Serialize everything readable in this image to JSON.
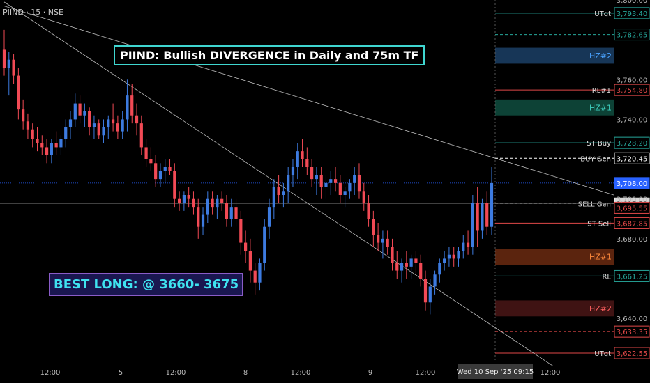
{
  "header": {
    "ticker": "PIIND · 15 · NSE"
  },
  "annotations": {
    "title": "PIIND: Bullish DIVERGENCE in Daily and 75m TF",
    "best_long": "BEST LONG: @ 3660- 3675"
  },
  "colors": {
    "background": "#000000",
    "bull": "#3d7be0",
    "bear": "#f24a55",
    "axis_text": "#b8b8b8",
    "teal_line": "#26a69a",
    "red_line": "#e04848",
    "current_price": "#2962ff"
  },
  "chart_data": {
    "type": "candlestick",
    "title": "PIIND: Bullish DIVERGENCE in Daily and 75m TF",
    "ylim": [
      3618,
      3800
    ],
    "y_ticks": [
      "3,800.00",
      "3,760.00",
      "3,740.00",
      "3,700.00",
      "3,680.00",
      "3,640.00"
    ],
    "x_ticks": [
      "12:00",
      "5",
      "12:00",
      "8",
      "12:00",
      "9",
      "12:00",
      "12:00"
    ],
    "crosshair_date": "Wed 10 Sep '25   09:15",
    "candles": [
      [
        3775,
        3785,
        3762,
        3766
      ],
      [
        3766,
        3774,
        3752,
        3770
      ],
      [
        3770,
        3773,
        3758,
        3762
      ],
      [
        3762,
        3766,
        3740,
        3745
      ],
      [
        3745,
        3750,
        3735,
        3739
      ],
      [
        3739,
        3743,
        3730,
        3735
      ],
      [
        3735,
        3738,
        3726,
        3730
      ],
      [
        3730,
        3736,
        3724,
        3728
      ],
      [
        3728,
        3732,
        3722,
        3726
      ],
      [
        3726,
        3730,
        3718,
        3722
      ],
      [
        3722,
        3730,
        3718,
        3728
      ],
      [
        3728,
        3734,
        3722,
        3726
      ],
      [
        3726,
        3732,
        3722,
        3730
      ],
      [
        3730,
        3740,
        3726,
        3736
      ],
      [
        3736,
        3744,
        3730,
        3740
      ],
      [
        3740,
        3753,
        3736,
        3748
      ],
      [
        3748,
        3752,
        3738,
        3742
      ],
      [
        3742,
        3748,
        3736,
        3744
      ],
      [
        3744,
        3746,
        3732,
        3736
      ],
      [
        3736,
        3742,
        3730,
        3738
      ],
      [
        3738,
        3740,
        3730,
        3732
      ],
      [
        3732,
        3740,
        3728,
        3736
      ],
      [
        3736,
        3742,
        3730,
        3740
      ],
      [
        3740,
        3748,
        3734,
        3738
      ],
      [
        3738,
        3742,
        3730,
        3734
      ],
      [
        3734,
        3744,
        3730,
        3740
      ],
      [
        3740,
        3760,
        3734,
        3752
      ],
      [
        3752,
        3758,
        3738,
        3742
      ],
      [
        3742,
        3748,
        3732,
        3738
      ],
      [
        3738,
        3742,
        3722,
        3726
      ],
      [
        3726,
        3730,
        3716,
        3720
      ],
      [
        3720,
        3726,
        3714,
        3718
      ],
      [
        3718,
        3722,
        3706,
        3710
      ],
      [
        3710,
        3718,
        3706,
        3714
      ],
      [
        3714,
        3720,
        3708,
        3716
      ],
      [
        3716,
        3720,
        3712,
        3714
      ],
      [
        3714,
        3718,
        3696,
        3700
      ],
      [
        3700,
        3704,
        3694,
        3698
      ],
      [
        3698,
        3704,
        3694,
        3702
      ],
      [
        3702,
        3706,
        3696,
        3700
      ],
      [
        3700,
        3704,
        3692,
        3696
      ],
      [
        3696,
        3700,
        3680,
        3686
      ],
      [
        3686,
        3696,
        3682,
        3692
      ],
      [
        3692,
        3704,
        3688,
        3700
      ],
      [
        3700,
        3704,
        3692,
        3696
      ],
      [
        3696,
        3702,
        3690,
        3700
      ],
      [
        3700,
        3704,
        3694,
        3698
      ],
      [
        3698,
        3702,
        3686,
        3690
      ],
      [
        3690,
        3700,
        3686,
        3696
      ],
      [
        3696,
        3700,
        3686,
        3690
      ],
      [
        3690,
        3694,
        3672,
        3678
      ],
      [
        3678,
        3684,
        3668,
        3674
      ],
      [
        3674,
        3680,
        3658,
        3664
      ],
      [
        3664,
        3668,
        3652,
        3658
      ],
      [
        3658,
        3670,
        3654,
        3668
      ],
      [
        3668,
        3690,
        3664,
        3686
      ],
      [
        3686,
        3700,
        3680,
        3696
      ],
      [
        3696,
        3710,
        3690,
        3706
      ],
      [
        3706,
        3712,
        3698,
        3702
      ],
      [
        3702,
        3708,
        3696,
        3704
      ],
      [
        3704,
        3716,
        3698,
        3712
      ],
      [
        3712,
        3720,
        3706,
        3716
      ],
      [
        3716,
        3728,
        3710,
        3724
      ],
      [
        3724,
        3730,
        3716,
        3720
      ],
      [
        3720,
        3726,
        3712,
        3716
      ],
      [
        3716,
        3720,
        3706,
        3710
      ],
      [
        3710,
        3716,
        3702,
        3712
      ],
      [
        3712,
        3716,
        3700,
        3706
      ],
      [
        3706,
        3712,
        3700,
        3708
      ],
      [
        3708,
        3714,
        3702,
        3710
      ],
      [
        3710,
        3716,
        3704,
        3708
      ],
      [
        3708,
        3712,
        3698,
        3702
      ],
      [
        3702,
        3706,
        3696,
        3704
      ],
      [
        3704,
        3710,
        3700,
        3708
      ],
      [
        3708,
        3716,
        3702,
        3712
      ],
      [
        3712,
        3718,
        3700,
        3704
      ],
      [
        3704,
        3708,
        3694,
        3698
      ],
      [
        3698,
        3702,
        3686,
        3690
      ],
      [
        3690,
        3694,
        3676,
        3682
      ],
      [
        3682,
        3688,
        3674,
        3678
      ],
      [
        3678,
        3684,
        3670,
        3680
      ],
      [
        3680,
        3684,
        3672,
        3676
      ],
      [
        3676,
        3680,
        3664,
        3668
      ],
      [
        3668,
        3674,
        3660,
        3664
      ],
      [
        3664,
        3670,
        3658,
        3668
      ],
      [
        3668,
        3674,
        3660,
        3666
      ],
      [
        3666,
        3672,
        3660,
        3670
      ],
      [
        3670,
        3674,
        3662,
        3668
      ],
      [
        3668,
        3672,
        3656,
        3660
      ],
      [
        3660,
        3664,
        3644,
        3648
      ],
      [
        3648,
        3660,
        3642,
        3656
      ],
      [
        3656,
        3664,
        3652,
        3662
      ],
      [
        3662,
        3670,
        3658,
        3668
      ],
      [
        3668,
        3674,
        3664,
        3670
      ],
      [
        3670,
        3676,
        3666,
        3672
      ],
      [
        3672,
        3676,
        3666,
        3670
      ],
      [
        3670,
        3676,
        3666,
        3674
      ],
      [
        3674,
        3682,
        3670,
        3678
      ],
      [
        3678,
        3684,
        3672,
        3676
      ],
      [
        3676,
        3702,
        3672,
        3698
      ],
      [
        3698,
        3706,
        3676,
        3684
      ],
      [
        3684,
        3700,
        3680,
        3698
      ],
      [
        3698,
        3704,
        3682,
        3686
      ],
      [
        3686,
        3716,
        3682,
        3708
      ]
    ],
    "trendlines": [
      {
        "from": [
          0,
          3797
        ],
        "to": [
          "end",
          3702
        ]
      },
      {
        "from": [
          0,
          3799
        ],
        "to": [
          116,
          3616
        ]
      }
    ],
    "levels": [
      {
        "name": "UTgt",
        "price": 3793.4,
        "label": "3,793.40",
        "style": "solid",
        "color": "#26a69a"
      },
      {
        "name": "",
        "price": 3782.65,
        "label": "3,782.65",
        "style": "dashed",
        "color": "#26a69a"
      },
      {
        "name": "HZ#2",
        "zone": [
          3768,
          3776
        ],
        "label": "",
        "color": "#1b3f66",
        "text": "#4aa3ff"
      },
      {
        "name": "RL#1",
        "price": 3754.8,
        "label": "3,754.80",
        "style": "solid",
        "color": "#e04848"
      },
      {
        "name": "HZ#1",
        "zone": [
          3742,
          3750
        ],
        "label": "",
        "color": "#0f4d40",
        "text": "#3fd0c0"
      },
      {
        "name": "ST Buy",
        "price": 3728.2,
        "label": "3,728.20",
        "style": "solid",
        "color": "#26a69a"
      },
      {
        "name": "BUY Gen",
        "price": 3720.45,
        "label": "3,720.45",
        "style": "dashed",
        "color": "#ffffff"
      },
      {
        "name": "",
        "price": 3708.0,
        "label": "3,708.00",
        "style": "dotted",
        "color": "#2962ff"
      },
      {
        "name": "SELL Gen",
        "price": 3697.7,
        "label": "3,697.70",
        "style": "dashed",
        "color": "#aaaaaa"
      },
      {
        "name": "",
        "price": 3695.55,
        "label": "3,695.55",
        "style": "none",
        "color": "#e04848"
      },
      {
        "name": "ST Sell",
        "price": 3687.85,
        "label": "3,687.85",
        "style": "solid",
        "color": "#e04848"
      },
      {
        "name": "HZ#1",
        "zone": [
          3667,
          3675
        ],
        "label": "",
        "color": "#6b2a10",
        "text": "#ff8a3c"
      },
      {
        "name": "RL",
        "price": 3661.25,
        "label": "3,661.25",
        "style": "solid",
        "color": "#26a69a"
      },
      {
        "name": "HZ#2",
        "zone": [
          3641,
          3649
        ],
        "label": "",
        "color": "#4a1616",
        "text": "#ff6060"
      },
      {
        "name": "",
        "price": 3633.35,
        "label": "3,633.35",
        "style": "dashed",
        "color": "#e04848"
      },
      {
        "name": "UTgt",
        "price": 3622.55,
        "label": "3,622.55",
        "style": "solid",
        "color": "#e04848"
      }
    ]
  }
}
